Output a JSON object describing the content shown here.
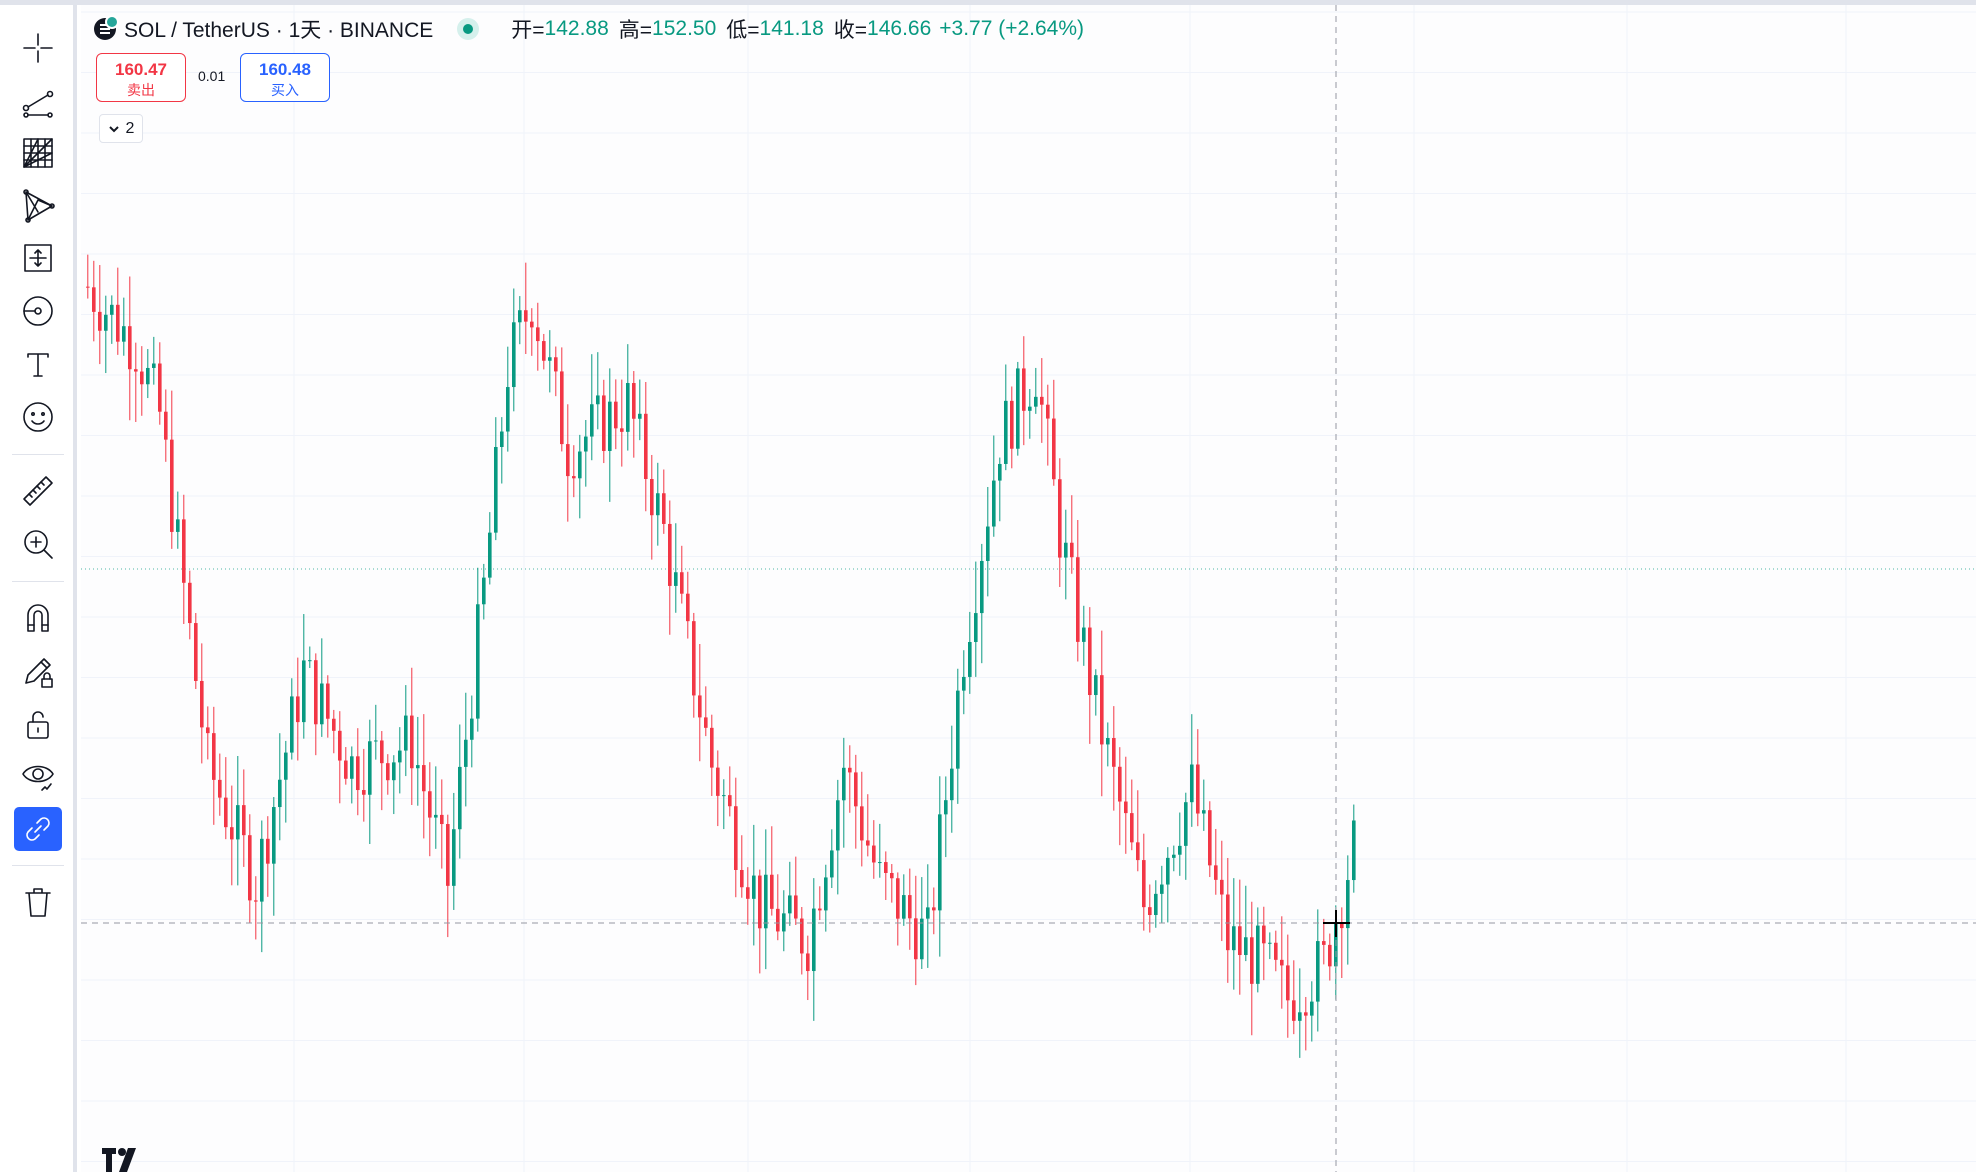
{
  "legend": {
    "symbol": "SOL / TetherUS · 1天 · BINANCE",
    "open_label": "开=",
    "open_value": "142.88",
    "high_label": "高=",
    "high_value": "152.50",
    "low_label": "低=",
    "low_value": "141.18",
    "close_label": "收=",
    "close_value": "146.66",
    "change": "+3.77 (+2.64%)"
  },
  "trade": {
    "sell_price": "160.47",
    "sell_label": "卖出",
    "spread": "0.01",
    "buy_price": "160.48",
    "buy_label": "买入"
  },
  "indicators_toggle": {
    "count": "2"
  },
  "toolbar": {
    "items": [
      {
        "icon": "crosshair-icon"
      },
      {
        "icon": "trend-line-icon"
      },
      {
        "icon": "gann-fib-icon"
      },
      {
        "icon": "patterns-icon"
      },
      {
        "icon": "prediction-measure-icon"
      },
      {
        "icon": "brush-icon"
      },
      {
        "icon": "text-icon"
      },
      {
        "icon": "emoji-icon"
      },
      {
        "icon": "ruler-icon"
      },
      {
        "icon": "zoom-in-icon"
      },
      {
        "icon": "magnet-icon"
      },
      {
        "icon": "lock-drawings-icon"
      },
      {
        "icon": "unlock-icon"
      },
      {
        "icon": "eye-icon"
      },
      {
        "icon": "link-icon",
        "active": true
      },
      {
        "icon": "trash-icon"
      }
    ]
  },
  "colors": {
    "up": "#089981",
    "down": "#f23645",
    "grid": "#f0f3fa",
    "crosshair": "#9598a1",
    "accent": "#2962ff"
  },
  "chart_data": {
    "type": "candlestick",
    "symbol": "SOL / TetherUS",
    "interval": "1天",
    "exchange": "BINANCE",
    "grid": true,
    "last_bar": {
      "open": 142.88,
      "high": 152.5,
      "low": 141.18,
      "close": 146.66
    },
    "candle_count": 212,
    "price_range_shown": [
      120,
      210
    ]
  }
}
